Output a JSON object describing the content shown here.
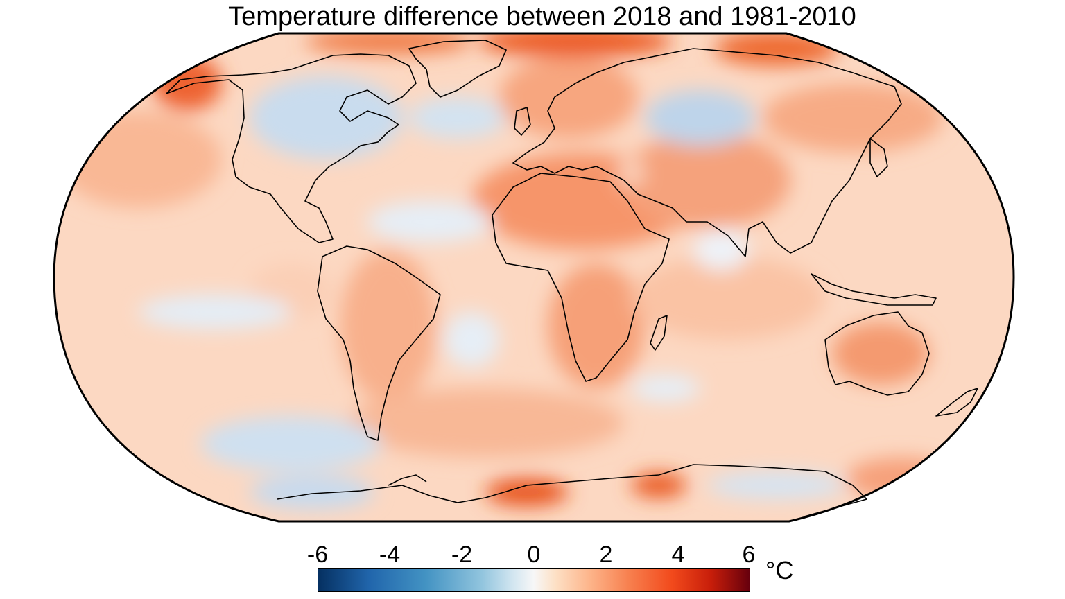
{
  "title": "Temperature difference between 2018 and 1981-2010",
  "colorbar": {
    "ticks": [
      "-6",
      "-4",
      "-2",
      "0",
      "2",
      "4",
      "6"
    ],
    "unit": "°C",
    "range": [
      -6,
      6
    ]
  },
  "colors": {
    "ocean_base": "#fbd9c4",
    "land_warm": "#f7a27a",
    "cool": "#c6dbef",
    "hot": "#e8420e",
    "coast": "#000000"
  }
}
